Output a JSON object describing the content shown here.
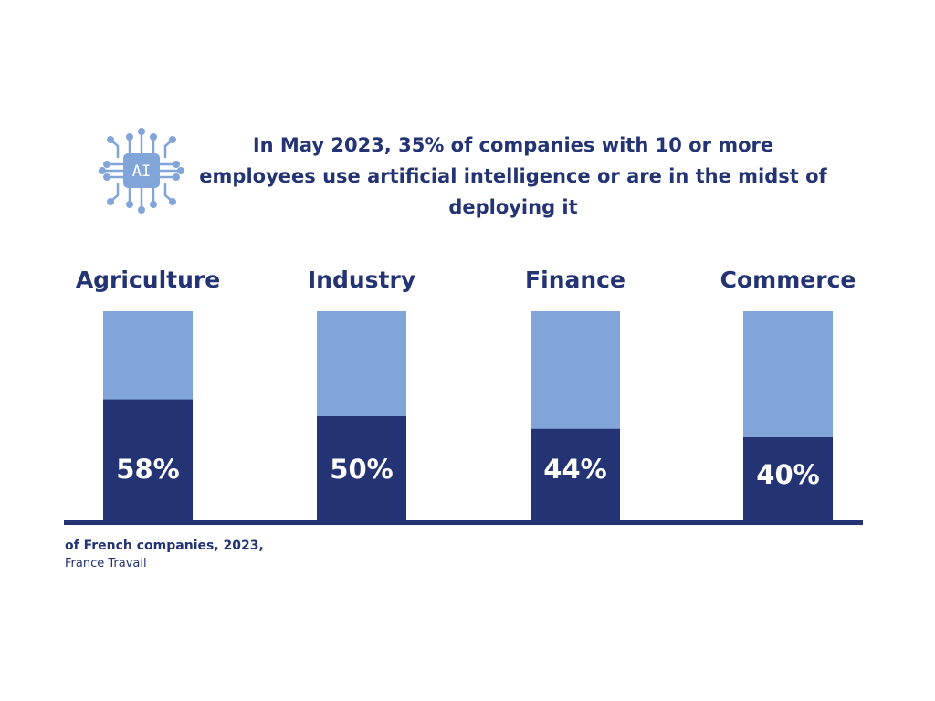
{
  "header": {
    "title_lines": [
      "In May 2023, 35% of companies with 10 or more",
      "employees use artificial intelligence or are in the midst of",
      "deploying it"
    ],
    "icon": {
      "name": "ai-chip-icon",
      "text": "AI"
    }
  },
  "chart_data": {
    "type": "bar",
    "categories": [
      "Agriculture",
      "Industry",
      "Finance",
      "Commerce"
    ],
    "values": [
      58,
      50,
      44,
      40
    ],
    "value_labels": [
      "58%",
      "50%",
      "44%",
      "40%"
    ],
    "title": "In May 2023, 35% of companies with 10 or more employees use artificial intelligence or are in the midst of deploying it",
    "xlabel": "",
    "ylabel": "",
    "ylim": [
      0,
      100
    ],
    "stacked_total": 100,
    "grid": false,
    "legend": "none"
  },
  "footer": {
    "note": "of French companies, 2023,",
    "source": "France Travail"
  },
  "colors": {
    "dark": "#233373",
    "light": "#82a5d9",
    "background": "#ffffff"
  }
}
